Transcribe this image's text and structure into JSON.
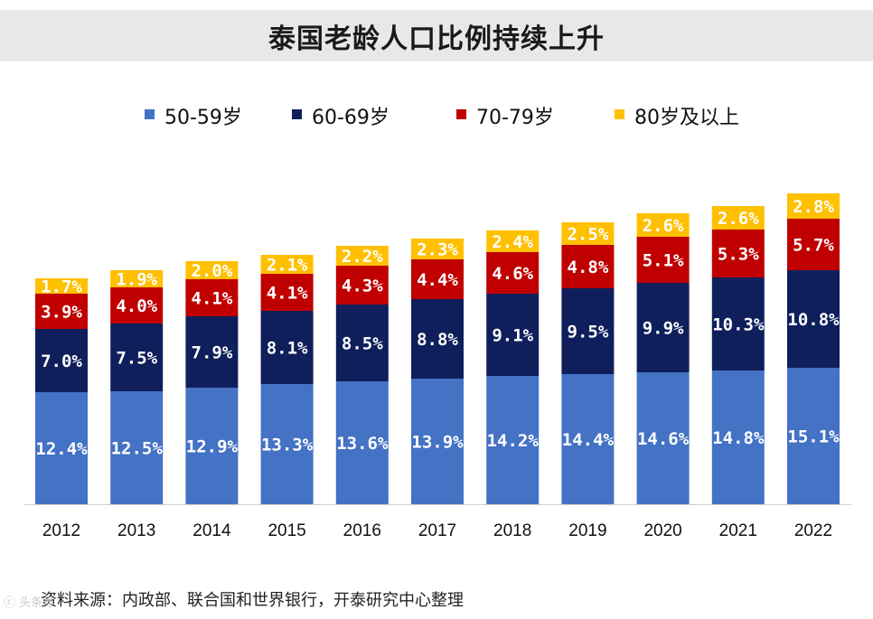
{
  "colors": {
    "s50": "#4472c4",
    "s60": "#0f1f5c",
    "s70": "#c00000",
    "s80": "#ffc000",
    "title_bg": "#e8e8e8"
  },
  "watermark": "ⓒ 头条号",
  "chart_data": {
    "type": "stacked-bar",
    "title": "泰国老龄人口比例持续上升",
    "categories": [
      "2012",
      "2013",
      "2014",
      "2015",
      "2016",
      "2017",
      "2018",
      "2019",
      "2020",
      "2021",
      "2022"
    ],
    "series": [
      {
        "name": "50-59岁",
        "values": [
          12.4,
          12.5,
          12.9,
          13.3,
          13.6,
          13.9,
          14.2,
          14.4,
          14.6,
          14.8,
          15.1
        ],
        "labels": [
          "12.4%",
          "12.5%",
          "12.9%",
          "13.3%",
          "13.6%",
          "13.9%",
          "14.2%",
          "14.4%",
          "14.6%",
          "14.8%",
          "15.1%"
        ]
      },
      {
        "name": "60-69岁",
        "values": [
          7.0,
          7.5,
          7.9,
          8.1,
          8.5,
          8.8,
          9.1,
          9.5,
          9.9,
          10.3,
          10.8
        ],
        "labels": [
          "7.0%",
          "7.5%",
          "7.9%",
          "8.1%",
          "8.5%",
          "8.8%",
          "9.1%",
          "9.5%",
          "9.9%",
          "10.3%",
          "10.8%"
        ]
      },
      {
        "name": "70-79岁",
        "values": [
          3.9,
          4.0,
          4.1,
          4.1,
          4.3,
          4.4,
          4.6,
          4.8,
          5.1,
          5.3,
          5.7
        ],
        "labels": [
          "3.9%",
          "4.0%",
          "4.1%",
          "4.1%",
          "4.3%",
          "4.4%",
          "4.6%",
          "4.8%",
          "5.1%",
          "5.3%",
          "5.7%"
        ]
      },
      {
        "name": "80岁及以上",
        "values": [
          1.7,
          1.9,
          2.0,
          2.1,
          2.2,
          2.3,
          2.4,
          2.5,
          2.6,
          2.6,
          2.8
        ],
        "labels": [
          "1.7%",
          "1.9%",
          "2.0%",
          "2.1%",
          "2.2%",
          "2.3%",
          "2.4%",
          "2.5%",
          "2.6%",
          "2.6%",
          "2.8%"
        ]
      }
    ],
    "xlabel": "",
    "ylabel": "",
    "legend": "top"
  },
  "source": "资料来源：内政部、联合国和世界银行，开泰研究中心整理"
}
